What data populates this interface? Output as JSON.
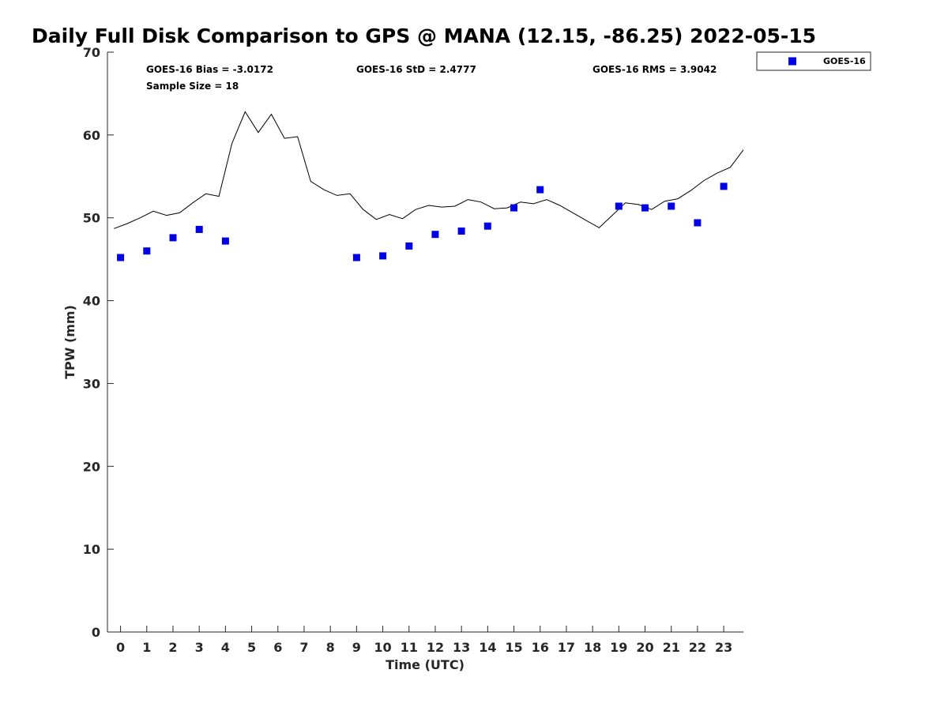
{
  "chart_data": {
    "type": "scatter",
    "title": "Daily Full Disk Comparison to GPS @ MANA (12.15, -86.25) 2022-05-15",
    "xlabel": "Time (UTC)",
    "ylabel": "TPW (mm)",
    "xlim": [
      -0.5,
      23.75
    ],
    "ylim": [
      0,
      70
    ],
    "xticks": [
      "0",
      "1",
      "2",
      "3",
      "4",
      "5",
      "6",
      "7",
      "8",
      "9",
      "10",
      "11",
      "12",
      "13",
      "14",
      "15",
      "16",
      "17",
      "18",
      "19",
      "20",
      "21",
      "22",
      "23"
    ],
    "yticks": [
      "0",
      "10",
      "20",
      "30",
      "40",
      "50",
      "60",
      "70"
    ],
    "grid": false,
    "legend_position": "top-right, outside plot",
    "stats": {
      "bias": "GOES-16 Bias = -3.0172",
      "std": "GOES-16 StD = 2.4777",
      "rms": "GOES-16 RMS = 3.9042",
      "sample": "Sample Size = 18"
    },
    "gps_line": {
      "color": "#000000",
      "x": [
        -0.25,
        0.25,
        0.75,
        1.25,
        1.75,
        2.25,
        2.75,
        3.25,
        3.75,
        4.25,
        4.75,
        5.25,
        5.75,
        6.25,
        6.75,
        7.25,
        7.75,
        8.25,
        8.75,
        9.25,
        9.75,
        10.25,
        10.75,
        11.25,
        11.75,
        12.25,
        12.75,
        13.25,
        13.75,
        14.25,
        14.75,
        15.25,
        15.75,
        16.25,
        16.75,
        17.25,
        17.75,
        18.25,
        18.75,
        19.25,
        19.75,
        20.25,
        20.75,
        21.25,
        21.75,
        22.25,
        22.75,
        23.25,
        23.75
      ],
      "y": [
        48.7,
        49.3,
        50.0,
        50.8,
        50.3,
        50.6,
        51.8,
        52.9,
        52.6,
        59.0,
        62.8,
        60.3,
        62.5,
        59.6,
        59.8,
        54.4,
        53.4,
        52.7,
        52.9,
        51.0,
        49.8,
        50.4,
        49.9,
        51.0,
        51.5,
        51.3,
        51.4,
        52.2,
        51.9,
        51.1,
        51.2,
        51.9,
        51.7,
        52.2,
        51.5,
        50.6,
        49.7,
        48.8,
        50.3,
        51.8,
        51.6,
        51.0,
        52.0,
        52.3,
        53.3,
        54.5,
        55.4,
        56.1,
        58.2
      ]
    },
    "series": [
      {
        "name": "GOES-16",
        "color": "#0000e6",
        "marker": "square",
        "x": [
          0,
          1,
          2,
          3,
          4,
          9,
          10,
          11,
          12,
          13,
          14,
          15,
          16,
          19,
          20,
          21,
          22,
          23
        ],
        "y": [
          45.2,
          46.0,
          47.6,
          48.6,
          47.2,
          45.2,
          45.4,
          46.6,
          48.0,
          48.4,
          49.0,
          51.2,
          53.4,
          51.4,
          51.2,
          51.4,
          49.4,
          53.8
        ]
      }
    ]
  }
}
